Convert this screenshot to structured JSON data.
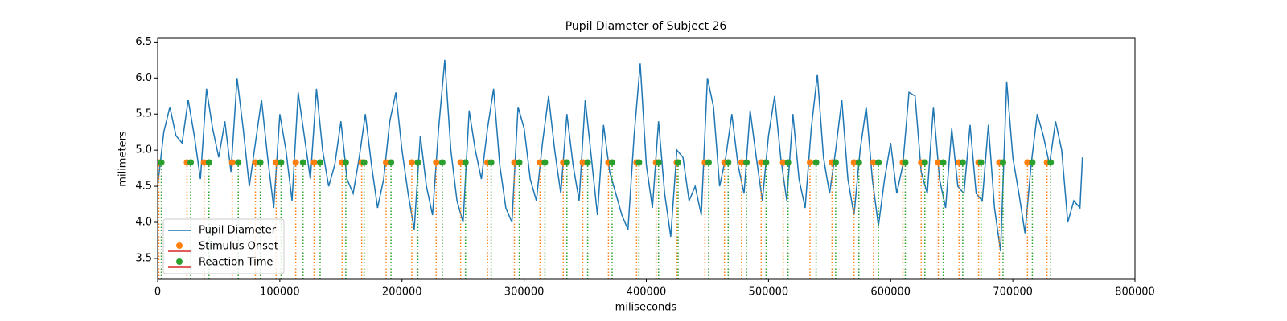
{
  "chart_data": {
    "type": "line",
    "title": "Pupil Diameter of Subject 26",
    "xlabel": "miliseconds",
    "ylabel": "milimeters",
    "xlim": [
      0,
      800000
    ],
    "ylim": [
      3.21,
      6.56
    ],
    "xticks": [
      0,
      100000,
      200000,
      300000,
      400000,
      500000,
      600000,
      700000,
      800000
    ],
    "yticks": [
      3.5,
      {
        "value": 4,
        "label": "4.0"
      },
      4.5,
      {
        "value": 5,
        "label": "5.0"
      },
      5.5,
      {
        "value": 6,
        "label": "6.0"
      },
      6.5
    ],
    "legend": "lower left",
    "series": [
      {
        "name": "Pupil Diameter",
        "type": "line",
        "color": "#1f77b4",
        "x": [
          0,
          5000,
          10000,
          15000,
          20000,
          25000,
          30000,
          35000,
          40000,
          45000,
          50000,
          55000,
          60000,
          65000,
          70000,
          75000,
          80000,
          85000,
          90000,
          95000,
          100000,
          105000,
          110000,
          115000,
          120000,
          125000,
          130000,
          135000,
          140000,
          145000,
          150000,
          155000,
          160000,
          165000,
          170000,
          175000,
          180000,
          185000,
          190000,
          195000,
          200000,
          205000,
          210000,
          215000,
          220000,
          225000,
          230000,
          235000,
          240000,
          245000,
          250000,
          255000,
          260000,
          265000,
          270000,
          275000,
          280000,
          285000,
          290000,
          295000,
          300000,
          305000,
          310000,
          315000,
          320000,
          325000,
          330000,
          335000,
          340000,
          345000,
          350000,
          355000,
          360000,
          365000,
          370000,
          375000,
          380000,
          385000,
          390000,
          395000,
          400000,
          405000,
          410000,
          415000,
          420000,
          425000,
          430000,
          435000,
          440000,
          445000,
          450000,
          455000,
          460000,
          465000,
          470000,
          475000,
          480000,
          485000,
          490000,
          495000,
          500000,
          505000,
          510000,
          515000,
          520000,
          525000,
          530000,
          535000,
          540000,
          545000,
          550000,
          555000,
          560000,
          565000,
          570000,
          575000,
          580000,
          585000,
          590000,
          595000,
          600000,
          605000,
          610000,
          615000,
          620000,
          625000,
          630000,
          635000,
          640000,
          645000,
          650000,
          655000,
          660000,
          665000,
          670000,
          675000,
          680000,
          685000,
          690000,
          695000,
          700000,
          705000,
          710000,
          715000,
          720000,
          725000,
          730000,
          735000,
          740000,
          745000,
          750000,
          755000,
          757000
        ],
        "values": [
          4.5,
          5.25,
          5.6,
          5.2,
          5.1,
          5.7,
          5.2,
          4.6,
          5.85,
          5.3,
          4.9,
          5.4,
          4.7,
          6.0,
          5.3,
          4.5,
          5.1,
          5.7,
          4.9,
          4.2,
          5.5,
          5.0,
          4.3,
          5.8,
          5.2,
          4.6,
          5.85,
          5.0,
          4.5,
          4.8,
          5.4,
          4.6,
          4.4,
          4.9,
          5.5,
          4.8,
          4.2,
          4.6,
          5.4,
          5.8,
          5.0,
          4.4,
          3.9,
          5.2,
          4.5,
          4.1,
          5.3,
          6.25,
          5.0,
          4.3,
          4.0,
          5.55,
          5.0,
          4.6,
          5.3,
          5.85,
          4.8,
          4.2,
          4.0,
          5.6,
          5.3,
          4.6,
          4.3,
          5.1,
          5.75,
          5.0,
          4.4,
          5.5,
          4.8,
          4.3,
          5.7,
          4.9,
          4.1,
          5.35,
          4.7,
          4.4,
          4.1,
          3.9,
          5.2,
          6.2,
          4.8,
          4.2,
          5.4,
          4.4,
          3.8,
          5.0,
          4.9,
          4.3,
          4.5,
          4.1,
          6.0,
          5.6,
          4.5,
          4.9,
          5.5,
          4.8,
          4.4,
          5.55,
          4.9,
          4.3,
          5.2,
          5.75,
          4.9,
          4.3,
          5.5,
          4.6,
          4.2,
          5.3,
          6.05,
          4.9,
          4.4,
          5.0,
          5.7,
          4.6,
          4.1,
          5.0,
          5.6,
          4.6,
          3.95,
          4.6,
          5.1,
          4.4,
          4.8,
          5.8,
          5.75,
          4.7,
          4.4,
          5.6,
          4.6,
          4.2,
          5.3,
          4.5,
          4.4,
          5.35,
          4.4,
          4.3,
          5.35,
          4.2,
          3.6,
          5.95,
          4.9,
          4.4,
          3.85,
          4.8,
          5.5,
          5.2,
          4.8,
          5.4,
          5.0,
          4.0,
          4.3,
          4.2,
          4.9
        ]
      },
      {
        "name": "Stimulus Onset",
        "type": "stem",
        "color": "#ff7f0e",
        "baseline_color": "#d62728",
        "x": [
          1000,
          24000,
          38000,
          61000,
          80000,
          97000,
          113000,
          128000,
          151000,
          167000,
          187000,
          208000,
          228000,
          248000,
          270000,
          292000,
          313000,
          332000,
          348000,
          369000,
          392000,
          408000,
          425000,
          448000,
          464000,
          478000,
          494000,
          512000,
          534000,
          552000,
          570000,
          586000,
          610000,
          625000,
          639000,
          656000,
          672000,
          689000,
          712000,
          728000
        ],
        "values": [
          4.83,
          4.83,
          4.83,
          4.83,
          4.83,
          4.83,
          4.83,
          4.83,
          4.83,
          4.83,
          4.83,
          4.83,
          4.83,
          4.83,
          4.83,
          4.83,
          4.83,
          4.83,
          4.83,
          4.83,
          4.83,
          4.83,
          4.83,
          4.83,
          4.83,
          4.83,
          4.83,
          4.83,
          4.83,
          4.83,
          4.83,
          4.83,
          4.83,
          4.83,
          4.83,
          4.83,
          4.83,
          4.83,
          4.83,
          4.83
        ]
      },
      {
        "name": "Reaction Time",
        "type": "stem",
        "color": "#2ca02c",
        "baseline_color": "#d62728",
        "x": [
          3000,
          27000,
          42000,
          66000,
          84000,
          101000,
          119000,
          133000,
          154000,
          169000,
          191000,
          213000,
          233000,
          252000,
          273000,
          296000,
          317000,
          335000,
          352000,
          372000,
          394000,
          410000,
          426000,
          451000,
          467000,
          482000,
          498000,
          516000,
          539000,
          555000,
          574000,
          590000,
          612000,
          628000,
          643000,
          659000,
          674000,
          692000,
          716000,
          731000
        ],
        "values": [
          4.83,
          4.83,
          4.83,
          4.83,
          4.83,
          4.83,
          4.83,
          4.83,
          4.83,
          4.83,
          4.83,
          4.83,
          4.83,
          4.83,
          4.83,
          4.83,
          4.83,
          4.83,
          4.83,
          4.83,
          4.83,
          4.83,
          4.83,
          4.83,
          4.83,
          4.83,
          4.83,
          4.83,
          4.83,
          4.83,
          4.83,
          4.83,
          4.83,
          4.83,
          4.83,
          4.83,
          4.83,
          4.83,
          4.83,
          4.83
        ]
      }
    ]
  }
}
